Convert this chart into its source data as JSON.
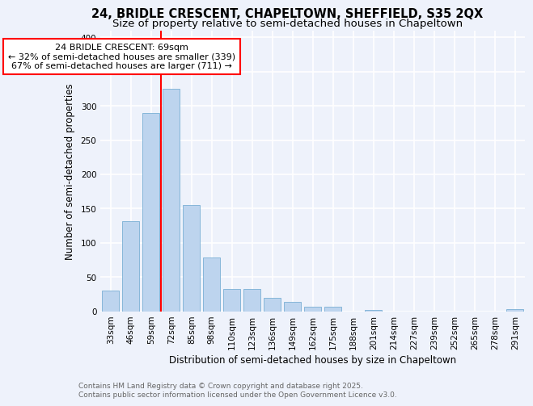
{
  "title1": "24, BRIDLE CRESCENT, CHAPELTOWN, SHEFFIELD, S35 2QX",
  "title2": "Size of property relative to semi-detached houses in Chapeltown",
  "xlabel": "Distribution of semi-detached houses by size in Chapeltown",
  "ylabel": "Number of semi-detached properties",
  "categories": [
    "33sqm",
    "46sqm",
    "59sqm",
    "72sqm",
    "85sqm",
    "98sqm",
    "110sqm",
    "123sqm",
    "136sqm",
    "149sqm",
    "162sqm",
    "175sqm",
    "188sqm",
    "201sqm",
    "214sqm",
    "227sqm",
    "239sqm",
    "252sqm",
    "265sqm",
    "278sqm",
    "291sqm"
  ],
  "values": [
    30,
    131,
    290,
    325,
    155,
    79,
    33,
    33,
    20,
    13,
    6,
    6,
    0,
    2,
    0,
    0,
    0,
    0,
    0,
    0,
    3
  ],
  "bar_color": "#bdd4ee",
  "bar_edge_color": "#7aafd4",
  "vline_x": 2.5,
  "vline_color": "red",
  "annotation_text": "24 BRIDLE CRESCENT: 69sqm\n← 32% of semi-detached houses are smaller (339)\n67% of semi-detached houses are larger (711) →",
  "annotation_box_color": "white",
  "annotation_box_edge_color": "red",
  "ylim": [
    0,
    410
  ],
  "yticks": [
    0,
    50,
    100,
    150,
    200,
    250,
    300,
    350,
    400
  ],
  "background_color": "#eef2fb",
  "grid_color": "#ffffff",
  "footer_text": "Contains HM Land Registry data © Crown copyright and database right 2025.\nContains public sector information licensed under the Open Government Licence v3.0.",
  "title_fontsize": 10.5,
  "subtitle_fontsize": 9.5,
  "axis_label_fontsize": 8.5,
  "tick_fontsize": 7.5,
  "annotation_fontsize": 8,
  "footer_fontsize": 6.5
}
